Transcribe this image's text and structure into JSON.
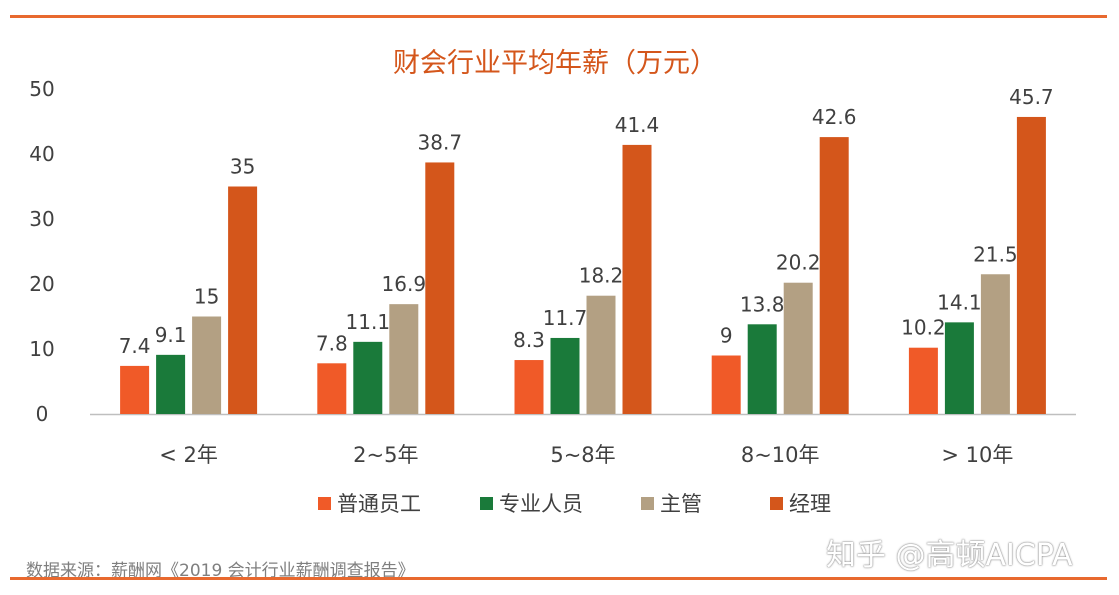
{
  "chart_data": {
    "type": "bar",
    "title": "财会行业平均年薪（万元）",
    "xlabel": "",
    "ylabel": "",
    "ylim": [
      0,
      50
    ],
    "yticks": [
      0,
      10,
      20,
      30,
      40,
      50
    ],
    "grid": false,
    "legend_position": "bottom",
    "categories": [
      "< 2年",
      "2~5年",
      "5~8年",
      "8~10年",
      "> 10年"
    ],
    "series": [
      {
        "name": "普通员工",
        "color": "#f05a28",
        "values": [
          7.4,
          7.8,
          8.3,
          9,
          10.2
        ]
      },
      {
        "name": "专业人员",
        "color": "#1a7a3a",
        "values": [
          9.1,
          11.1,
          11.7,
          13.8,
          14.1
        ]
      },
      {
        "name": "主管",
        "color": "#b3a083",
        "values": [
          15,
          16.9,
          18.2,
          20.2,
          21.5
        ]
      },
      {
        "name": "经理",
        "color": "#d4561b",
        "values": [
          35,
          38.7,
          41.4,
          42.6,
          45.7
        ]
      }
    ]
  },
  "colors": {
    "title": "#d4561b",
    "rule": "#e8692f",
    "text": "#404040",
    "axis": "#bfbfbf"
  },
  "source": "数据来源：薪酬网《2019 会计行业薪酬调查报告》",
  "watermark": "知乎 @高顿AICPA"
}
